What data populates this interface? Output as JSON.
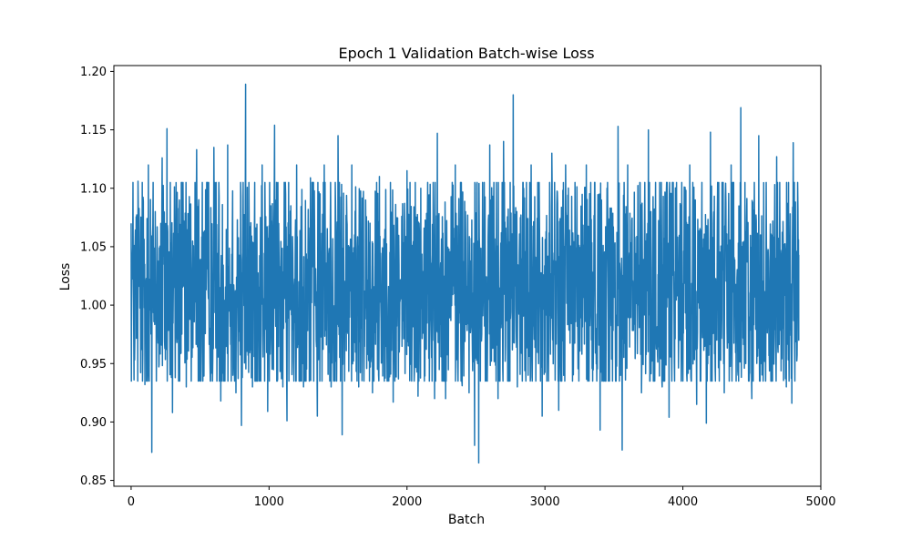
{
  "chart_data": {
    "type": "line",
    "title": "Epoch 1 Validation Batch-wise Loss",
    "xlabel": "Batch",
    "ylabel": "Loss",
    "xlim": [
      -125,
      5000
    ],
    "ylim": [
      0.845,
      1.205
    ],
    "xticks": [
      0,
      1000,
      2000,
      3000,
      4000,
      5000
    ],
    "xtick_labels": [
      "0",
      "1000",
      "2000",
      "3000",
      "4000",
      "5000"
    ],
    "yticks": [
      0.85,
      0.9,
      0.95,
      1.0,
      1.05,
      1.1,
      1.15,
      1.2
    ],
    "ytick_labels": [
      "0.85",
      "0.90",
      "0.95",
      "1.00",
      "1.05",
      "1.10",
      "1.15",
      "1.20"
    ],
    "grid": false,
    "legend": "none",
    "series": [
      {
        "color": "#1f77b4",
        "points": [
          [
            0,
            1.07
          ],
          [
            25,
            0.953
          ],
          [
            50,
            1.106
          ],
          [
            75,
            0.962
          ],
          [
            100,
            0.932
          ],
          [
            125,
            1.12
          ],
          [
            150,
            0.874
          ],
          [
            175,
            1.08
          ],
          [
            225,
            1.126
          ],
          [
            260,
            1.151
          ],
          [
            300,
            0.908
          ],
          [
            350,
            1.09
          ],
          [
            400,
            0.93
          ],
          [
            450,
            1.05
          ],
          [
            475,
            1.133
          ],
          [
            520,
            0.935
          ],
          [
            600,
            1.135
          ],
          [
            650,
            0.918
          ],
          [
            700,
            1.137
          ],
          [
            760,
            0.925
          ],
          [
            800,
            0.897
          ],
          [
            830,
            1.189
          ],
          [
            880,
            0.93
          ],
          [
            950,
            1.12
          ],
          [
            990,
            0.909
          ],
          [
            1040,
            1.154
          ],
          [
            1100,
            0.93
          ],
          [
            1130,
            0.901
          ],
          [
            1200,
            1.12
          ],
          [
            1250,
            0.93
          ],
          [
            1300,
            1.109
          ],
          [
            1350,
            0.905
          ],
          [
            1400,
            1.12
          ],
          [
            1450,
            0.93
          ],
          [
            1500,
            1.145
          ],
          [
            1530,
            0.889
          ],
          [
            1600,
            1.12
          ],
          [
            1650,
            0.93
          ],
          [
            1700,
            1.09
          ],
          [
            1750,
            0.925
          ],
          [
            1800,
            1.11
          ],
          [
            1900,
            0.917
          ],
          [
            2000,
            1.115
          ],
          [
            2080,
            0.922
          ],
          [
            2100,
            1.1
          ],
          [
            2200,
            0.92
          ],
          [
            2220,
            1.147
          ],
          [
            2280,
            0.92
          ],
          [
            2350,
            1.12
          ],
          [
            2400,
            0.931
          ],
          [
            2450,
            0.925
          ],
          [
            2490,
            0.88
          ],
          [
            2520,
            0.865
          ],
          [
            2600,
            1.137
          ],
          [
            2660,
            0.92
          ],
          [
            2700,
            1.14
          ],
          [
            2770,
            1.18
          ],
          [
            2800,
            0.93
          ],
          [
            2900,
            1.12
          ],
          [
            2980,
            0.905
          ],
          [
            3050,
            1.13
          ],
          [
            3100,
            0.91
          ],
          [
            3150,
            1.12
          ],
          [
            3200,
            0.935
          ],
          [
            3300,
            1.12
          ],
          [
            3400,
            0.893
          ],
          [
            3450,
            1.1
          ],
          [
            3530,
            1.153
          ],
          [
            3560,
            0.876
          ],
          [
            3600,
            1.12
          ],
          [
            3700,
            0.925
          ],
          [
            3750,
            1.15
          ],
          [
            3850,
            0.93
          ],
          [
            3900,
            0.904
          ],
          [
            3950,
            1.1
          ],
          [
            4000,
            0.935
          ],
          [
            4050,
            1.12
          ],
          [
            4100,
            0.915
          ],
          [
            4170,
            0.899
          ],
          [
            4200,
            1.148
          ],
          [
            4300,
            0.925
          ],
          [
            4350,
            1.12
          ],
          [
            4400,
            0.94
          ],
          [
            4420,
            1.169
          ],
          [
            4500,
            0.92
          ],
          [
            4550,
            1.145
          ],
          [
            4600,
            0.935
          ],
          [
            4680,
            1.127
          ],
          [
            4750,
            0.93
          ],
          [
            4790,
            0.916
          ],
          [
            4800,
            1.139
          ],
          [
            4830,
            1.0
          ],
          [
            4840,
            0.97
          ],
          [
            4840,
            1.043
          ]
        ]
      }
    ]
  }
}
